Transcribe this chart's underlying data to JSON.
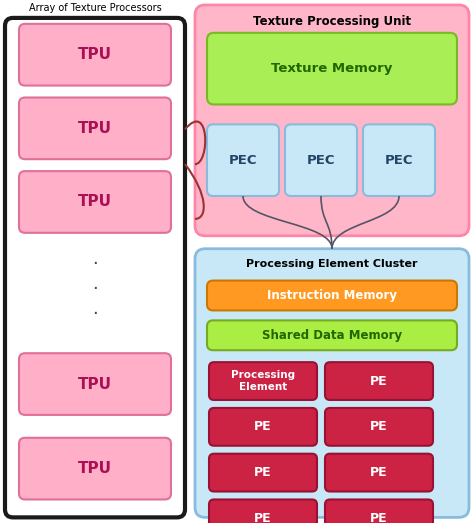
{
  "title_left": "Array of Texture Processors",
  "title_right_top": "Texture Processing Unit",
  "title_right_bottom": "Processing Element Cluster",
  "tpu_labels": [
    "TPU",
    "TPU",
    "TPU",
    "TPU",
    "TPU"
  ],
  "tpu_fill": "#FFB0C8",
  "tpu_edge": "#E0709A",
  "left_bg": "#FFFFFF",
  "left_border": "#1a1a1a",
  "texture_unit_bg": "#FFB6C8",
  "texture_unit_edge": "#FF85A8",
  "texture_memory_fill": "#AAEE55",
  "texture_memory_edge": "#77BB22",
  "pec_fill": "#C8E8F8",
  "pec_edge": "#88BBDD",
  "cluster_bg": "#C8E8F8",
  "cluster_edge": "#88BBDD",
  "instruction_fill": "#FF9922",
  "instruction_edge": "#CC7700",
  "shared_fill": "#AAEE44",
  "shared_edge": "#77AA22",
  "pe_fill": "#CC2244",
  "pe_edge": "#991133",
  "pe_text": "#FFFFFF",
  "connector_color": "#993333",
  "figsize": [
    4.74,
    5.26
  ],
  "dpi": 100
}
